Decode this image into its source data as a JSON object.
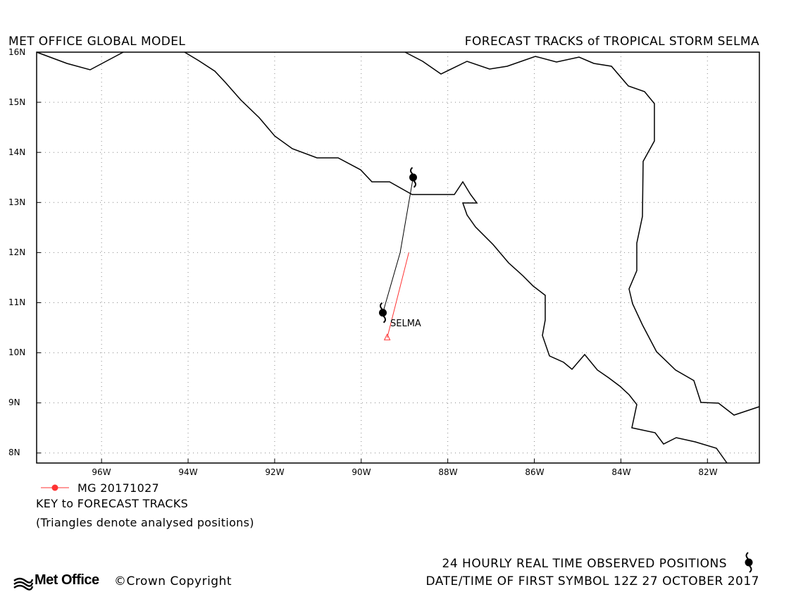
{
  "header": {
    "left_title": "MET OFFICE GLOBAL MODEL",
    "right_title": "FORECAST TRACKS of TROPICAL STORM SELMA"
  },
  "axes": {
    "lat_labels": [
      "16N",
      "15N",
      "14N",
      "13N",
      "12N",
      "11N",
      "10N",
      "9N",
      "8N"
    ],
    "lon_labels": [
      "96W",
      "94W",
      "92W",
      "90W",
      "88W",
      "86W",
      "84W",
      "82W"
    ],
    "lat_range": [
      7.8,
      16.0
    ],
    "lon_range": [
      -97.5,
      -80.8
    ],
    "grid": "dotted"
  },
  "storm": {
    "name_label": "SELMA",
    "observed_track": [
      {
        "lat": 13.5,
        "lon": -88.8
      },
      {
        "lat": 12.0,
        "lon": -89.1
      },
      {
        "lat": 10.8,
        "lon": -89.5
      }
    ],
    "forecast_track": [
      {
        "lat": 12.0,
        "lon": -88.9
      },
      {
        "lat": 10.3,
        "lon": -89.4
      }
    ],
    "colors": {
      "observed": "#000000",
      "forecast": "#ff3333"
    }
  },
  "key": {
    "model_label": "MG 20171027",
    "title": "KEY to FORECAST TRACKS",
    "note": "(Triangles denote analysed positions)"
  },
  "footer": {
    "logo_text": "Met Office",
    "copyright": "©Crown Copyright",
    "observed_label": "24 HOURLY REAL TIME OBSERVED POSITIONS",
    "datetime_label": "DATE/TIME OF FIRST SYMBOL 12Z 27 OCTOBER 2017"
  }
}
